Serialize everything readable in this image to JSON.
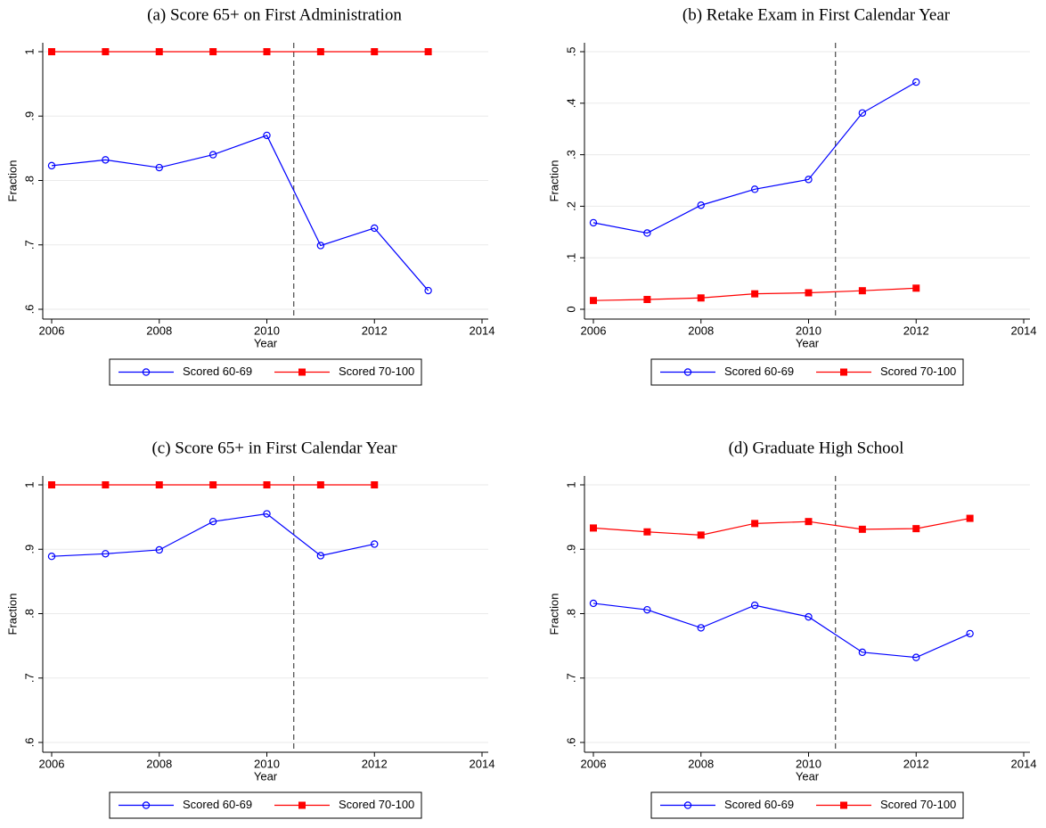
{
  "chart_data": [
    {
      "type": "line",
      "title": "(a) Score 65+ on First Administration",
      "xlabel": "Year",
      "ylabel": "Fraction",
      "x": [
        2006,
        2007,
        2008,
        2009,
        2010,
        2011,
        2012,
        2013
      ],
      "series": [
        {
          "name": "Scored 60-69",
          "color": "#0000ff",
          "marker": "circle",
          "values": [
            0.823,
            0.832,
            0.82,
            0.84,
            0.87,
            0.699,
            0.726,
            0.629
          ]
        },
        {
          "name": "Scored 70-100",
          "color": "#ff0000",
          "marker": "square",
          "values": [
            1,
            1,
            1,
            1,
            1,
            1,
            1,
            1
          ]
        }
      ],
      "xlim": [
        2006,
        2014
      ],
      "xticks": [
        2006,
        2008,
        2010,
        2012,
        2014
      ],
      "ylim": [
        0.6,
        1
      ],
      "yticks": [
        {
          "value": 0.6,
          "label": ".6"
        },
        {
          "value": 0.7,
          "label": ".7"
        },
        {
          "value": 0.8,
          "label": ".8"
        },
        {
          "value": 0.9,
          "label": ".9"
        },
        1
      ],
      "grid": true,
      "vline": 2010.5,
      "legend": "bottom"
    },
    {
      "type": "line",
      "title": "(b) Retake Exam in First Calendar Year",
      "xlabel": "Year",
      "ylabel": "Fraction",
      "x": [
        2006,
        2007,
        2008,
        2009,
        2010,
        2011,
        2012
      ],
      "series": [
        {
          "name": "Scored 60-69",
          "color": "#0000ff",
          "marker": "circle",
          "values": [
            0.168,
            0.148,
            0.202,
            0.233,
            0.252,
            0.381,
            0.441
          ]
        },
        {
          "name": "Scored 70-100",
          "color": "#ff0000",
          "marker": "square",
          "values": [
            0.017,
            0.019,
            0.022,
            0.03,
            0.032,
            0.036,
            0.041
          ]
        }
      ],
      "xlim": [
        2006,
        2014
      ],
      "xticks": [
        2006,
        2008,
        2010,
        2012,
        2014
      ],
      "ylim": [
        0,
        0.5
      ],
      "yticks": [
        0,
        {
          "value": 0.1,
          "label": ".1"
        },
        {
          "value": 0.2,
          "label": ".2"
        },
        {
          "value": 0.3,
          "label": ".3"
        },
        {
          "value": 0.4,
          "label": ".4"
        },
        {
          "value": 0.5,
          "label": ".5"
        }
      ],
      "grid": true,
      "vline": 2010.5,
      "legend": "bottom"
    },
    {
      "type": "line",
      "title": "(c) Score 65+ in First Calendar Year",
      "xlabel": "Year",
      "ylabel": "Fraction",
      "x": [
        2006,
        2007,
        2008,
        2009,
        2010,
        2011,
        2012
      ],
      "series": [
        {
          "name": "Scored 60-69",
          "color": "#0000ff",
          "marker": "circle",
          "values": [
            0.889,
            0.893,
            0.899,
            0.943,
            0.955,
            0.89,
            0.908
          ]
        },
        {
          "name": "Scored 70-100",
          "color": "#ff0000",
          "marker": "square",
          "values": [
            1,
            1,
            1,
            1,
            1,
            1,
            1
          ]
        }
      ],
      "xlim": [
        2006,
        2014
      ],
      "xticks": [
        2006,
        2008,
        2010,
        2012,
        2014
      ],
      "ylim": [
        0.6,
        1
      ],
      "yticks": [
        {
          "value": 0.6,
          "label": ".6"
        },
        {
          "value": 0.7,
          "label": ".7"
        },
        {
          "value": 0.8,
          "label": ".8"
        },
        {
          "value": 0.9,
          "label": ".9"
        },
        1
      ],
      "grid": true,
      "vline": 2010.5,
      "legend": "bottom"
    },
    {
      "type": "line",
      "title": "(d) Graduate High School",
      "xlabel": "Year",
      "ylabel": "Fraction",
      "x": [
        2006,
        2007,
        2008,
        2009,
        2010,
        2011,
        2012,
        2013
      ],
      "series": [
        {
          "name": "Scored 60-69",
          "color": "#0000ff",
          "marker": "circle",
          "values": [
            0.816,
            0.806,
            0.778,
            0.813,
            0.795,
            0.74,
            0.732,
            0.769
          ]
        },
        {
          "name": "Scored 70-100",
          "color": "#ff0000",
          "marker": "square",
          "values": [
            0.933,
            0.927,
            0.922,
            0.94,
            0.943,
            0.931,
            0.932,
            0.948
          ]
        }
      ],
      "xlim": [
        2006,
        2014
      ],
      "xticks": [
        2006,
        2008,
        2010,
        2012,
        2014
      ],
      "ylim": [
        0.6,
        1
      ],
      "yticks": [
        {
          "value": 0.6,
          "label": ".6"
        },
        {
          "value": 0.7,
          "label": ".7"
        },
        {
          "value": 0.8,
          "label": ".8"
        },
        {
          "value": 0.9,
          "label": ".9"
        },
        1
      ],
      "grid": true,
      "vline": 2010.5,
      "legend": "bottom"
    }
  ]
}
